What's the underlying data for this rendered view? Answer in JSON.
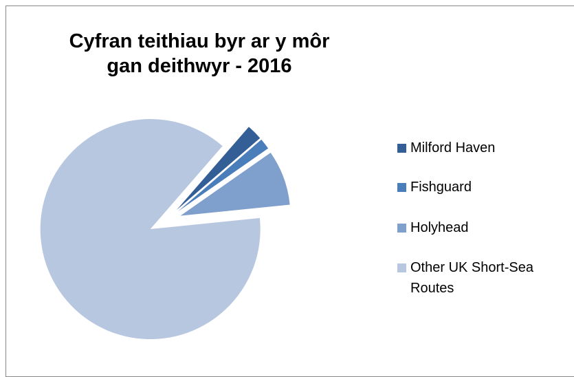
{
  "chart_data": {
    "type": "pie",
    "title": "Cyfran teithiau byr ar y môr gan deithwyr - 2016",
    "categories": [
      "Milford Haven",
      "Fishguard",
      "Holyhead",
      "Other UK Short-Sea Routes"
    ],
    "values": [
      2.3,
      1.6,
      8.1,
      88.0
    ],
    "colors": [
      "#335f96",
      "#4a7ebb",
      "#7f9fcc",
      "#b8c7e0"
    ],
    "legend": "right"
  }
}
